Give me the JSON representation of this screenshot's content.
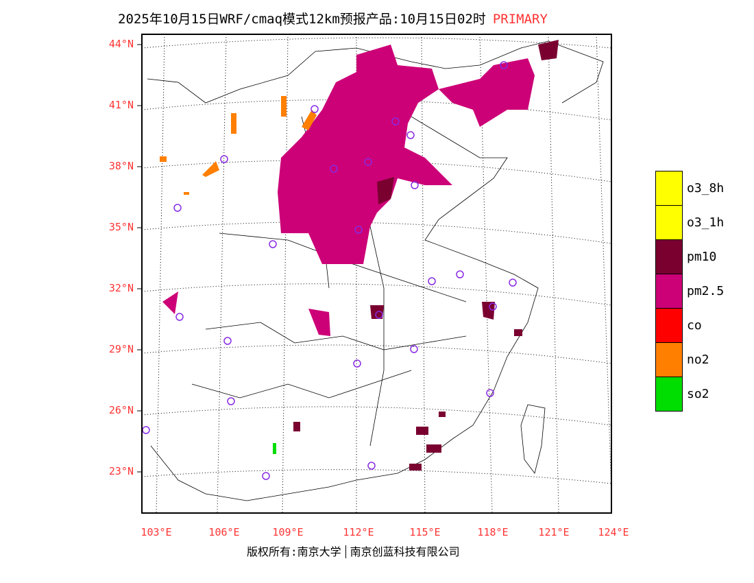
{
  "title": {
    "text": "2025年10月15日WRF/cmaq模式12km预报产品:10月15日02时",
    "mode": "PRIMARY"
  },
  "lat_labels": [
    "44°N",
    "41°N",
    "38°N",
    "35°N",
    "32°N",
    "29°N",
    "26°N",
    "23°N"
  ],
  "lon_labels": [
    "103°E",
    "106°E",
    "109°E",
    "112°E",
    "115°E",
    "118°E",
    "121°E",
    "124°E"
  ],
  "legend": [
    {
      "label": "o3_8h",
      "color": "#ffff00"
    },
    {
      "label": "o3_1h",
      "color": "#ffff00"
    },
    {
      "label": "pm10",
      "color": "#7a0030"
    },
    {
      "label": "pm2.5",
      "color": "#cc0077"
    },
    {
      "label": "co",
      "color": "#ff0000"
    },
    {
      "label": "no2",
      "color": "#ff7f00"
    },
    {
      "label": "so2",
      "color": "#00dd00"
    }
  ],
  "footer": {
    "left": "版权所有:南京大学",
    "right": "南京创蓝科技有限公司"
  }
}
